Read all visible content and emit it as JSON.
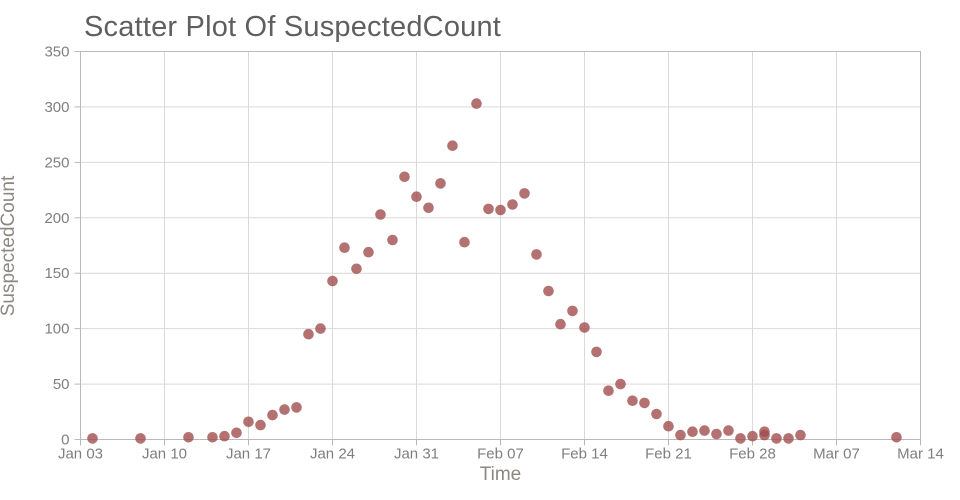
{
  "chart_data": {
    "type": "scatter",
    "title": "Scatter Plot Of SuspectedCount",
    "xlabel": "Time",
    "ylabel": "SuspectedCount",
    "grid": true,
    "legend": false,
    "x_axis": {
      "kind": "date",
      "range_days": [
        0,
        70
      ],
      "ticks": [
        {
          "day": 0,
          "label": "Jan 03"
        },
        {
          "day": 7,
          "label": "Jan 10"
        },
        {
          "day": 14,
          "label": "Jan 17"
        },
        {
          "day": 21,
          "label": "Jan 24"
        },
        {
          "day": 28,
          "label": "Jan 31"
        },
        {
          "day": 35,
          "label": "Feb 07"
        },
        {
          "day": 42,
          "label": "Feb 14"
        },
        {
          "day": 49,
          "label": "Feb 21"
        },
        {
          "day": 56,
          "label": "Feb 28"
        },
        {
          "day": 63,
          "label": "Mar 07"
        },
        {
          "day": 70,
          "label": "Mar 14"
        }
      ]
    },
    "y_axis": {
      "range": [
        0,
        350
      ],
      "ticks": [
        0,
        50,
        100,
        150,
        200,
        250,
        300,
        350
      ]
    },
    "marker": {
      "color": "#a14d4f",
      "opacity": 0.8,
      "radius": 5.3
    },
    "style": {
      "grid_color": "#d9d9d9",
      "axis_color": "#b9b9b9",
      "tick_label_color": "#7f7f7f",
      "axis_title_color": "#8c8781",
      "title_color": "#5f5f5f",
      "background": "#ffffff"
    },
    "points": [
      {
        "date": "Jan 04",
        "day": 1,
        "value": 1
      },
      {
        "date": "Jan 08",
        "day": 5,
        "value": 1
      },
      {
        "date": "Jan 12",
        "day": 9,
        "value": 2
      },
      {
        "date": "Jan 14",
        "day": 11,
        "value": 2
      },
      {
        "date": "Jan 15",
        "day": 12,
        "value": 3
      },
      {
        "date": "Jan 16",
        "day": 13,
        "value": 6
      },
      {
        "date": "Jan 17",
        "day": 14,
        "value": 16
      },
      {
        "date": "Jan 18",
        "day": 15,
        "value": 13
      },
      {
        "date": "Jan 19",
        "day": 16,
        "value": 22
      },
      {
        "date": "Jan 20",
        "day": 17,
        "value": 27
      },
      {
        "date": "Jan 21",
        "day": 18,
        "value": 29
      },
      {
        "date": "Jan 22",
        "day": 19,
        "value": 95
      },
      {
        "date": "Jan 23",
        "day": 20,
        "value": 100
      },
      {
        "date": "Jan 24",
        "day": 21,
        "value": 143
      },
      {
        "date": "Jan 25",
        "day": 22,
        "value": 173
      },
      {
        "date": "Jan 26",
        "day": 23,
        "value": 154
      },
      {
        "date": "Jan 27",
        "day": 24,
        "value": 169
      },
      {
        "date": "Jan 28",
        "day": 25,
        "value": 203
      },
      {
        "date": "Jan 29",
        "day": 26,
        "value": 180
      },
      {
        "date": "Jan 30",
        "day": 27,
        "value": 237
      },
      {
        "date": "Jan 31",
        "day": 28,
        "value": 219
      },
      {
        "date": "Feb 01",
        "day": 29,
        "value": 209
      },
      {
        "date": "Feb 02",
        "day": 30,
        "value": 231
      },
      {
        "date": "Feb 03",
        "day": 31,
        "value": 265
      },
      {
        "date": "Feb 04",
        "day": 32,
        "value": 178
      },
      {
        "date": "Feb 05",
        "day": 33,
        "value": 303
      },
      {
        "date": "Feb 06",
        "day": 34,
        "value": 208
      },
      {
        "date": "Feb 07",
        "day": 35,
        "value": 207
      },
      {
        "date": "Feb 08",
        "day": 36,
        "value": 212
      },
      {
        "date": "Feb 09",
        "day": 37,
        "value": 222
      },
      {
        "date": "Feb 10",
        "day": 38,
        "value": 167
      },
      {
        "date": "Feb 11",
        "day": 39,
        "value": 134
      },
      {
        "date": "Feb 12",
        "day": 40,
        "value": 104
      },
      {
        "date": "Feb 13",
        "day": 41,
        "value": 116
      },
      {
        "date": "Feb 14",
        "day": 42,
        "value": 101
      },
      {
        "date": "Feb 15",
        "day": 43,
        "value": 79
      },
      {
        "date": "Feb 16",
        "day": 44,
        "value": 44
      },
      {
        "date": "Feb 17",
        "day": 45,
        "value": 50
      },
      {
        "date": "Feb 18",
        "day": 46,
        "value": 35
      },
      {
        "date": "Feb 19",
        "day": 47,
        "value": 33
      },
      {
        "date": "Feb 20",
        "day": 48,
        "value": 23
      },
      {
        "date": "Feb 21",
        "day": 49,
        "value": 12
      },
      {
        "date": "Feb 22",
        "day": 50,
        "value": 4
      },
      {
        "date": "Feb 23",
        "day": 51,
        "value": 7
      },
      {
        "date": "Feb 24",
        "day": 52,
        "value": 8
      },
      {
        "date": "Feb 25",
        "day": 53,
        "value": 5
      },
      {
        "date": "Feb 26",
        "day": 54,
        "value": 8
      },
      {
        "date": "Feb 27",
        "day": 55,
        "value": 1
      },
      {
        "date": "Feb 28",
        "day": 56,
        "value": 3
      },
      {
        "date": "Mar 01",
        "day": 57,
        "value": 7
      },
      {
        "date": "Mar 01",
        "day": 57,
        "value": 4
      },
      {
        "date": "Mar 02",
        "day": 58,
        "value": 1
      },
      {
        "date": "Mar 03",
        "day": 59,
        "value": 1
      },
      {
        "date": "Mar 04",
        "day": 60,
        "value": 4
      },
      {
        "date": "Mar 12",
        "day": 68,
        "value": 2
      }
    ]
  }
}
